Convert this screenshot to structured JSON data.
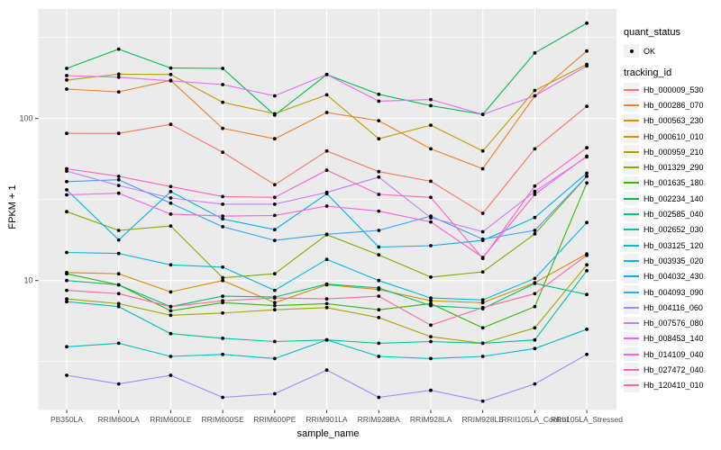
{
  "figure": {
    "panel_bg": "#EBEBEB",
    "grid_color": "#FFFFFF",
    "point_color": "#000000",
    "tick_mark_color": "#333333",
    "tick_label_color": "#4D4D4D"
  },
  "yaxis": {
    "title": "FPKM + 1",
    "ticks": [
      {
        "label": "100",
        "value": 100
      },
      {
        "label": "10",
        "value": 10
      }
    ]
  },
  "xaxis": {
    "title": "sample_name"
  },
  "legend": {
    "quant_title": "quant_status",
    "quant_ok_label": "OK",
    "tracking_title": "tracking_id"
  },
  "chart_data": {
    "type": "line",
    "title": "",
    "xlabel": "sample_name",
    "ylabel": "FPKM + 1",
    "yscale": "log10",
    "ylim": [
      1.6,
      480
    ],
    "grid": "white major gridlines at 10 and 100 plus log minor gridlines on gray panel",
    "legend_position": "right",
    "point_marker": "small solid black point on every value (quant_status = OK)",
    "x_categories": [
      "PB350LA",
      "RRIM600LA",
      "RRIM600LE",
      "RRIM600SE",
      "RRIM600PE",
      "RRIM901LA",
      "RRIM928BA",
      "RRIM928LA",
      "RRIM928LE",
      "RRII105LA_Control",
      "RRII105LA_Stressed"
    ],
    "series": [
      {
        "name": "Hb_000009_530",
        "color": "#F8766D",
        "values": [
          81,
          81,
          92,
          62,
          39,
          63,
          47,
          41,
          26,
          65,
          119
        ]
      },
      {
        "name": "Hb_000286_070",
        "color": "#EA8331",
        "values": [
          152,
          146,
          172,
          87,
          75,
          109,
          97,
          65,
          49,
          138,
          261
        ]
      },
      {
        "name": "Hb_000563_230",
        "color": "#D89000",
        "values": [
          11.2,
          11.0,
          8.5,
          10.0,
          7.3,
          9.4,
          8.8,
          7.5,
          7.3,
          9.7,
          14.6
        ]
      },
      {
        "name": "Hb_000610_010",
        "color": "#C09B00",
        "values": [
          173,
          188,
          187,
          126,
          107,
          140,
          75,
          91,
          63,
          149,
          216
        ]
      },
      {
        "name": "Hb_000959_210",
        "color": "#A3A500",
        "values": [
          7.7,
          7.2,
          6.1,
          6.3,
          6.6,
          6.8,
          5.9,
          4.5,
          4.1,
          5.1,
          12.5
        ]
      },
      {
        "name": "Hb_001329_290",
        "color": "#7CAE00",
        "values": [
          26.6,
          20.4,
          21.7,
          10.4,
          11.0,
          19.2,
          14.4,
          10.5,
          11.3,
          19.4,
          44
        ]
      },
      {
        "name": "Hb_001635_180",
        "color": "#39B600",
        "values": [
          11.0,
          9.4,
          6.5,
          7.3,
          7.0,
          7.2,
          6.6,
          7.2,
          5.1,
          6.9,
          40
        ]
      },
      {
        "name": "Hb_002234_140",
        "color": "#00BB4E",
        "values": [
          204,
          268,
          205,
          204,
          105,
          187,
          141,
          120,
          106,
          254,
          388
        ]
      },
      {
        "name": "Hb_002585_040",
        "color": "#00BF7D",
        "values": [
          10.0,
          9.4,
          6.9,
          8.0,
          7.9,
          9.5,
          9.0,
          7.0,
          6.7,
          9.6,
          8.2
        ]
      },
      {
        "name": "Hb_002652_030",
        "color": "#00C1A3",
        "values": [
          7.4,
          6.9,
          4.7,
          4.4,
          4.2,
          4.3,
          4.1,
          4.2,
          4.1,
          4.3,
          11.5
        ]
      },
      {
        "name": "Hb_003125_120",
        "color": "#00BFC4",
        "values": [
          3.9,
          4.1,
          3.4,
          3.5,
          3.3,
          4.3,
          3.4,
          3.3,
          3.4,
          3.8,
          5.0
        ]
      },
      {
        "name": "Hb_003935_020",
        "color": "#00BAE0",
        "values": [
          14.9,
          14.7,
          12.5,
          12.1,
          8.7,
          13.5,
          10.0,
          7.8,
          7.6,
          10.3,
          22.8
        ]
      },
      {
        "name": "Hb_004032_430",
        "color": "#00B0F6",
        "values": [
          36.3,
          17.8,
          35.4,
          24.0,
          20.6,
          34.3,
          16.1,
          16.4,
          17.7,
          24.5,
          46
        ]
      },
      {
        "name": "Hb_004093_090",
        "color": "#35A2FF",
        "values": [
          40.8,
          41.9,
          30.0,
          21.5,
          17.7,
          19.3,
          20.4,
          25.0,
          18.0,
          20.4,
          44
        ]
      },
      {
        "name": "Hb_004116_060",
        "color": "#9590FF",
        "values": [
          2.6,
          2.3,
          2.6,
          1.9,
          2.0,
          2.8,
          1.9,
          2.1,
          1.8,
          2.3,
          3.5
        ]
      },
      {
        "name": "Hb_007576_080",
        "color": "#C77CFF",
        "values": [
          47.4,
          38.6,
          32.3,
          29.6,
          29.6,
          35.0,
          43.5,
          24.4,
          20.0,
          35.5,
          58.0
        ]
      },
      {
        "name": "Hb_008453_140",
        "color": "#E76BF3",
        "values": [
          184,
          180,
          171,
          162,
          138,
          187,
          128,
          131,
          106,
          138,
          211
        ]
      },
      {
        "name": "Hb_014109_040",
        "color": "#FA62DB",
        "values": [
          33.8,
          34.6,
          25.7,
          25.0,
          25.2,
          28.8,
          26.8,
          23.0,
          13.9,
          34.0,
          58.6
        ]
      },
      {
        "name": "Hb_027472_040",
        "color": "#FF62BC",
        "values": [
          49,
          44,
          38,
          33,
          32.6,
          48,
          34,
          32.6,
          13.7,
          38.3,
          66
        ]
      },
      {
        "name": "Hb_120410_010",
        "color": "#FF6A98",
        "values": [
          8.7,
          8.3,
          6.9,
          7.5,
          7.8,
          7.7,
          8.0,
          5.3,
          6.8,
          8.3,
          14.3
        ]
      }
    ]
  }
}
